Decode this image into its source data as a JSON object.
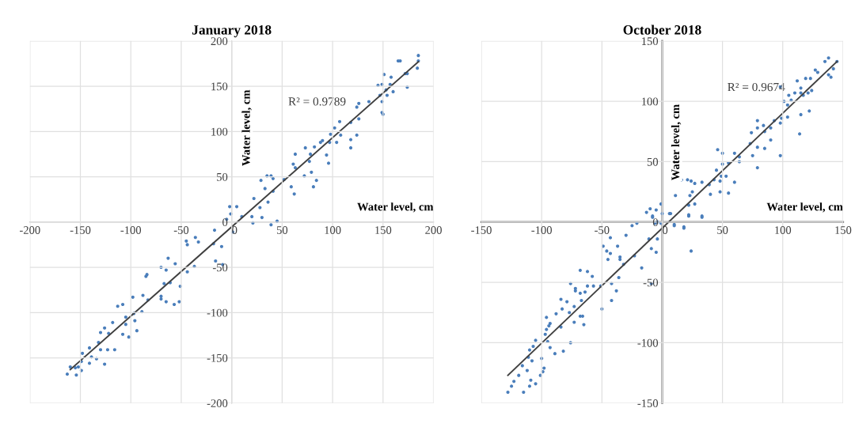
{
  "chart_data": [
    {
      "type": "scatter",
      "title": "January 2018",
      "xlabel": "Water level, cm",
      "ylabel": "Water level, cm",
      "xlim": [
        -200,
        200
      ],
      "ylim": [
        -200,
        200
      ],
      "xticks": [
        -200,
        -150,
        -100,
        -50,
        0,
        50,
        100,
        150,
        200
      ],
      "yticks": [
        -200,
        -150,
        -100,
        -50,
        0,
        50,
        100,
        150,
        200
      ],
      "grid": true,
      "annotations": [
        "R² = 0.9789"
      ],
      "series": [
        {
          "type": "scatter",
          "marker": "circle",
          "color": "#4a7ebb",
          "x": [
            185,
            185,
            184,
            167,
            165,
            174,
            172,
            174,
            151,
            158,
            157,
            149,
            145,
            153,
            147,
            154,
            160,
            149,
            149,
            150,
            136,
            126,
            124,
            126,
            118,
            107,
            102,
            108,
            104,
            124,
            118,
            118,
            98,
            97,
            90,
            88,
            82,
            73,
            78,
            77,
            94,
            96,
            63,
            61,
            63,
            79,
            72,
            84,
            81,
            59,
            62,
            52,
            39,
            35,
            41,
            29,
            33,
            41,
            36,
            28,
            22,
            20,
            30,
            10,
            -2,
            5,
            -1,
            -5,
            45,
            39,
            21,
            1,
            -17,
            -18,
            -10,
            -16,
            -9,
            -36,
            -33,
            -45,
            -44,
            -37,
            -44,
            -63,
            -56,
            -70,
            -65,
            -67,
            -61,
            -51,
            -70,
            -70,
            -65,
            -57,
            -52,
            -84,
            -85,
            -88,
            -83,
            -89,
            -98,
            -108,
            -113,
            -105,
            -97,
            -96,
            -105,
            -102,
            -108,
            -94,
            -118,
            -126,
            -130,
            -122,
            -132,
            -130,
            -123,
            -116,
            -141,
            -148,
            -139,
            -134,
            -141,
            -126,
            -149,
            -155,
            -160,
            -163,
            -154,
            -149,
            -152
          ],
          "values": [
            184,
            178,
            170,
            178,
            178,
            164,
            164,
            149,
            163,
            160,
            152,
            152,
            151,
            146,
            140,
            140,
            144,
            133,
            121,
            119,
            133,
            131,
            127,
            114,
            110,
            111,
            104,
            96,
            88,
            96,
            91,
            82,
            97,
            88,
            90,
            88,
            83,
            82,
            75,
            67,
            74,
            65,
            75,
            64,
            60,
            55,
            51,
            46,
            39,
            39,
            31,
            47,
            51,
            51,
            48,
            46,
            37,
            34,
            22,
            16,
            26,
            6,
            5,
            6,
            17,
            17,
            9,
            3,
            1,
            -3,
            -1,
            -11,
            -9,
            -24,
            -27,
            -43,
            -47,
            -17,
            -22,
            -21,
            -25,
            -49,
            -55,
            -40,
            -46,
            -50,
            -53,
            -68,
            -67,
            -71,
            -82,
            -85,
            -88,
            -91,
            -88,
            -58,
            -60,
            -81,
            -86,
            -99,
            -83,
            -91,
            -93,
            -105,
            -101,
            -109,
            -113,
            -127,
            -124,
            -120,
            -111,
            -117,
            -122,
            -123,
            -133,
            -141,
            -141,
            -141,
            -139,
            -145,
            -149,
            -151,
            -156,
            -157,
            -154,
            -161,
            -160,
            -168,
            -169,
            -164,
            -160
          ]
        },
        {
          "type": "line",
          "color": "#404040",
          "x": [
            -160,
            185
          ],
          "values": [
            -163,
            177
          ]
        }
      ]
    },
    {
      "type": "scatter",
      "title": "October 2018",
      "xlabel": "Water level, cm",
      "ylabel": "Water level, cm",
      "xlim": [
        -150,
        150
      ],
      "ylim": [
        -150,
        150
      ],
      "xticks": [
        -150,
        -100,
        -50,
        0,
        50,
        100,
        150
      ],
      "yticks": [
        -150,
        -100,
        -50,
        0,
        50,
        100,
        150
      ],
      "grid": true,
      "annotations": [
        "R² = 0.9674"
      ],
      "series": [
        {
          "type": "scatter",
          "marker": "circle",
          "color": "#4a7ebb",
          "x": [
            138,
            135,
            145,
            142,
            138,
            140,
            127,
            129,
            123,
            119,
            112,
            115,
            115,
            117,
            121,
            124,
            110,
            107,
            101,
            104,
            98,
            105,
            122,
            115,
            114,
            104,
            99,
            98,
            93,
            98,
            90,
            84,
            79,
            79,
            85,
            90,
            74,
            79,
            85,
            73,
            75,
            79,
            64,
            64,
            60,
            60,
            55,
            50,
            46,
            50,
            45,
            49,
            53,
            48,
            55,
            48,
            40,
            43,
            39,
            33,
            27,
            24,
            21,
            16,
            25,
            23,
            27,
            22,
            11,
            33,
            22,
            6,
            -1,
            -5,
            -10,
            -13,
            -8,
            -4,
            10,
            18,
            0,
            7,
            22,
            33,
            10,
            18,
            24,
            -1,
            -6,
            -8,
            -4,
            -9,
            -5,
            -11,
            -17,
            -23,
            -9,
            -25,
            -21,
            -30,
            -32,
            -35,
            -35,
            -36,
            -37,
            -43,
            -49,
            -46,
            -43,
            -45,
            -42,
            -38,
            -42,
            -50,
            -51,
            -57,
            -58,
            -62,
            -68,
            -62,
            -64,
            -68,
            -72,
            -72,
            -76,
            -67,
            -66,
            -68,
            -65,
            -73,
            -77,
            -73,
            -79,
            -84,
            -83,
            -88,
            -84,
            -76,
            -82,
            -89,
            -93,
            -95,
            -96,
            -93,
            -94,
            -96,
            -97,
            -100,
            -98,
            -99,
            -101,
            -105,
            -107,
            -110,
            -111,
            -108,
            -112,
            -109,
            -105,
            -110,
            -115,
            -116,
            -119,
            -123,
            -125,
            -128
          ],
          "values": [
            136,
            133,
            133,
            127,
            122,
            120,
            126,
            124,
            119,
            119,
            117,
            111,
            107,
            105,
            107,
            109,
            107,
            101,
            100,
            97,
            112,
            105,
            92,
            89,
            73,
            87,
            86,
            82,
            84,
            55,
            78,
            80,
            84,
            78,
            75,
            68,
            74,
            62,
            61,
            65,
            55,
            45,
            54,
            50,
            57,
            33,
            49,
            48,
            60,
            57,
            43,
            38,
            38,
            34,
            24,
            25,
            23,
            35,
            31,
            33,
            32,
            34,
            35,
            35,
            25,
            22,
            15,
            14,
            22,
            4,
            5,
            7,
            15,
            10,
            11,
            8,
            4,
            0,
            -3,
            -4,
            7,
            7,
            6,
            5,
            -2,
            -5,
            -24,
            -1,
            -1,
            5,
            -14,
            -22,
            -25,
            -14,
            -38,
            -28,
            -51,
            -3,
            -1,
            -11,
            -35,
            -29,
            -31,
            -46,
            -20,
            -13,
            -20,
            -24,
            -26,
            -31,
            -51,
            -57,
            -65,
            -72,
            -53,
            -53,
            -45,
            -41,
            -40,
            -53,
            -58,
            -59,
            -55,
            -57,
            -51,
            -65,
            -78,
            -78,
            -85,
            -70,
            -75,
            -83,
            -66,
            -64,
            -72,
            -76,
            -87,
            -100,
            -107,
            -109,
            -104,
            -99,
            -79,
            -84,
            -86,
            -89,
            -93,
            -113,
            -121,
            -124,
            -127,
            -98,
            -103,
            -106,
            -112,
            -115,
            -123,
            -131,
            -134,
            -136,
            -141,
            -119,
            -127,
            -132,
            -136,
            -141
          ]
        },
        {
          "type": "line",
          "color": "#404040",
          "x": [
            -128,
            145
          ],
          "values": [
            -127,
            133
          ]
        }
      ]
    }
  ]
}
